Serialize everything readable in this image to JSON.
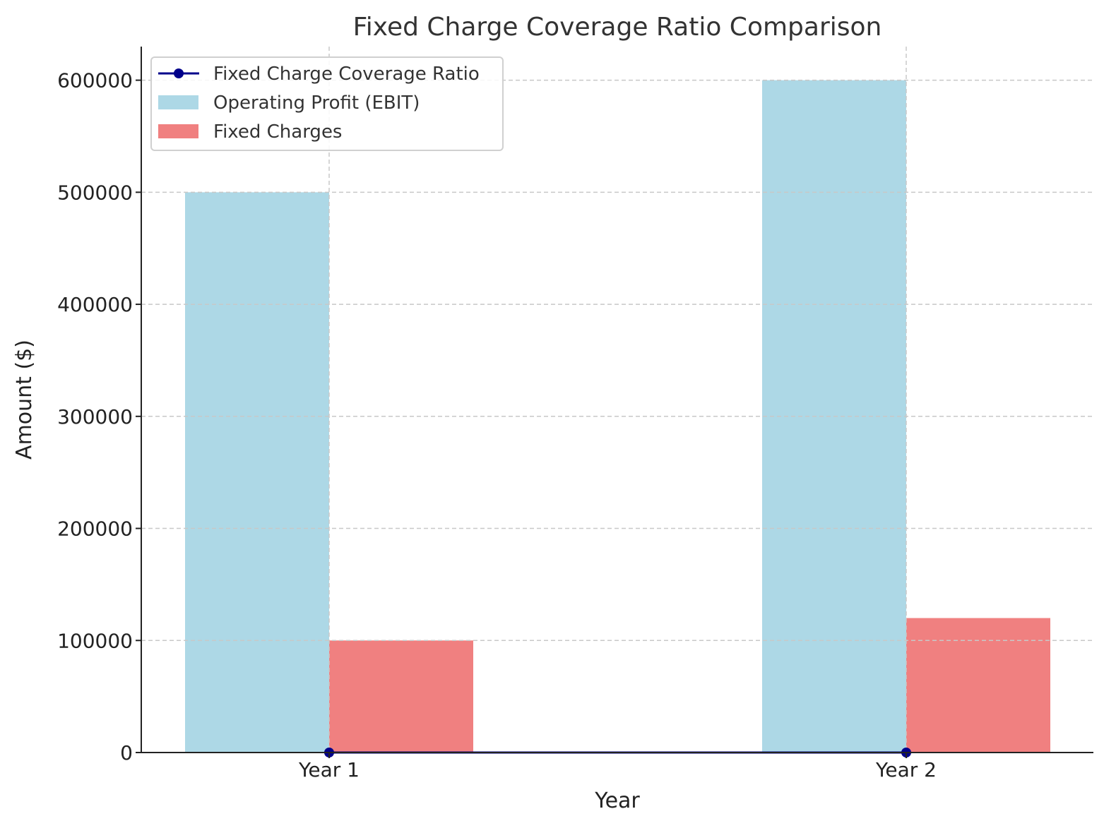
{
  "chart_data": {
    "type": "bar",
    "title": "Fixed Charge Coverage Ratio Comparison",
    "xlabel": "Year",
    "ylabel": "Amount ($)",
    "categories": [
      "Year 1",
      "Year 2"
    ],
    "ylim": [
      0,
      630000
    ],
    "yticks": [
      0,
      100000,
      200000,
      300000,
      400000,
      500000,
      600000
    ],
    "grid": true,
    "legend_position": "top-left",
    "series": [
      {
        "name": "Operating Profit (EBIT)",
        "kind": "bar",
        "color": "#add8e6",
        "values": [
          500000,
          600000
        ]
      },
      {
        "name": "Fixed Charges",
        "kind": "bar",
        "color": "#f08080",
        "values": [
          100000,
          120000
        ]
      },
      {
        "name": "Fixed Charge Coverage Ratio",
        "kind": "line",
        "color": "#00008b",
        "values": [
          5,
          5
        ]
      }
    ]
  }
}
